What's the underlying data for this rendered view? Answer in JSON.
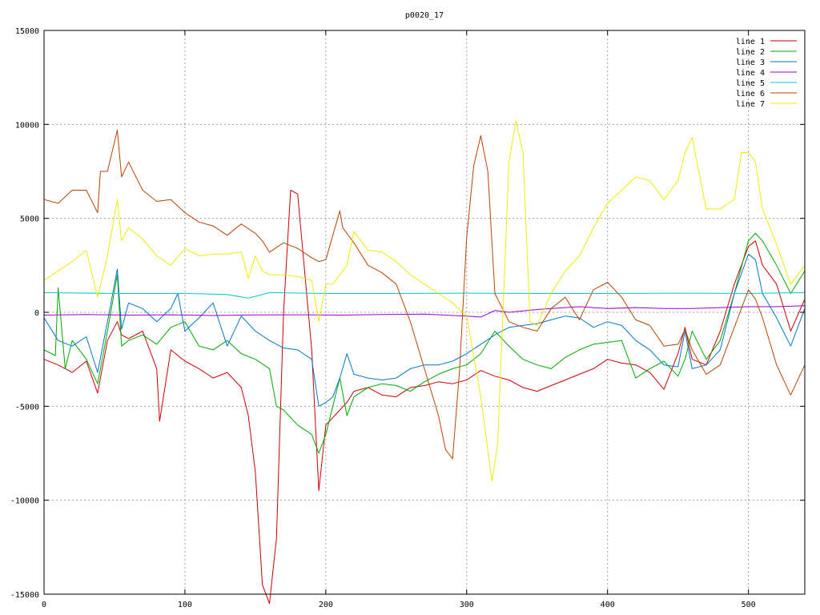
{
  "chart_data": {
    "type": "line",
    "title": "p0020_17",
    "xlabel": "",
    "ylabel": "",
    "xlim": [
      0,
      540
    ],
    "ylim": [
      -15000,
      15000
    ],
    "x_ticks": [
      0,
      100,
      200,
      300,
      400,
      500
    ],
    "y_ticks": [
      -15000,
      -10000,
      -5000,
      0,
      5000,
      10000,
      15000
    ],
    "grid": true,
    "legend_position": "top-right",
    "series": [
      {
        "name": "line 1",
        "color": "#cc0000",
        "x": [
          0,
          10,
          20,
          30,
          38,
          45,
          52,
          55,
          60,
          70,
          80,
          82,
          90,
          100,
          110,
          120,
          130,
          140,
          145,
          150,
          155,
          160,
          165,
          170,
          175,
          180,
          190,
          195,
          200,
          210,
          215,
          220,
          230,
          240,
          250,
          260,
          270,
          280,
          290,
          300,
          310,
          320,
          330,
          340,
          350,
          360,
          370,
          380,
          390,
          400,
          410,
          420,
          430,
          440,
          450,
          455,
          460,
          470,
          480,
          490,
          500,
          505,
          510,
          520,
          530,
          540
        ],
        "y": [
          -2500,
          -2800,
          -3200,
          -2600,
          -4300,
          -1500,
          -500,
          -1200,
          -1400,
          -1000,
          -3000,
          -5800,
          -2000,
          -2600,
          -3000,
          -3500,
          -3200,
          -4000,
          -5500,
          -8500,
          -14500,
          -15500,
          -12000,
          0,
          6500,
          6300,
          -2000,
          -9500,
          -6000,
          -5200,
          -4800,
          -4200,
          -4000,
          -4400,
          -4500,
          -4000,
          -3900,
          -3700,
          -3800,
          -3600,
          -3100,
          -3400,
          -3600,
          -4000,
          -4200,
          -3900,
          -3600,
          -3300,
          -3000,
          -2500,
          -2700,
          -2800,
          -3200,
          -4100,
          -2200,
          -800,
          -2500,
          -2800,
          -1000,
          1500,
          3500,
          3800,
          2500,
          1500,
          -1000,
          700
        ]
      },
      {
        "name": "line 2",
        "color": "#00aa00",
        "x": [
          0,
          8,
          10,
          15,
          20,
          30,
          38,
          45,
          52,
          55,
          60,
          70,
          80,
          90,
          100,
          110,
          120,
          130,
          140,
          150,
          160,
          165,
          170,
          180,
          190,
          195,
          200,
          205,
          210,
          215,
          220,
          230,
          240,
          250,
          260,
          270,
          280,
          290,
          300,
          310,
          320,
          330,
          340,
          350,
          360,
          370,
          380,
          390,
          400,
          410,
          420,
          430,
          440,
          450,
          455,
          460,
          470,
          480,
          490,
          500,
          505,
          510,
          520,
          530,
          540
        ],
        "y": [
          -2000,
          -2300,
          1300,
          -3000,
          -1500,
          -2500,
          -3800,
          -1000,
          2000,
          -1800,
          -1500,
          -1200,
          -1700,
          -800,
          -500,
          -1800,
          -2000,
          -1500,
          -2200,
          -2500,
          -3000,
          -5000,
          -5200,
          -6000,
          -6500,
          -7500,
          -6500,
          -5000,
          -3500,
          -5500,
          -4500,
          -4000,
          -3800,
          -3900,
          -4200,
          -3700,
          -3300,
          -3000,
          -2800,
          -2200,
          -1000,
          -1800,
          -2500,
          -2800,
          -3000,
          -2400,
          -2000,
          -1700,
          -1600,
          -1500,
          -3500,
          -3000,
          -2600,
          -3400,
          -2500,
          -1000,
          -2500,
          -1500,
          1000,
          3800,
          4200,
          3800,
          2500,
          1000,
          2200
        ]
      },
      {
        "name": "line 3",
        "color": "#0077cc",
        "x": [
          0,
          10,
          20,
          30,
          38,
          45,
          52,
          55,
          60,
          70,
          80,
          90,
          95,
          100,
          110,
          120,
          130,
          140,
          150,
          160,
          170,
          180,
          190,
          195,
          200,
          205,
          210,
          215,
          220,
          230,
          240,
          250,
          260,
          270,
          280,
          290,
          300,
          310,
          320,
          330,
          340,
          350,
          360,
          370,
          380,
          390,
          400,
          410,
          420,
          430,
          440,
          450,
          455,
          460,
          470,
          480,
          490,
          500,
          505,
          510,
          520,
          530,
          540
        ],
        "y": [
          -300,
          -1500,
          -1800,
          -1300,
          -3200,
          -500,
          2300,
          -900,
          500,
          200,
          -500,
          200,
          1000,
          -1000,
          -300,
          500,
          -1800,
          -200,
          -1000,
          -1500,
          -1900,
          -2000,
          -2500,
          -5000,
          -4800,
          -4500,
          -3500,
          -2200,
          -3300,
          -3500,
          -3600,
          -3500,
          -3000,
          -2800,
          -2800,
          -2600,
          -2200,
          -1700,
          -1200,
          -800,
          -700,
          -600,
          -400,
          -200,
          -300,
          -800,
          -500,
          -700,
          -1500,
          -2000,
          -2800,
          -2900,
          -1000,
          -3000,
          -2800,
          -2000,
          1000,
          3100,
          2800,
          1000,
          -300,
          -1800,
          200
        ]
      },
      {
        "name": "line 4",
        "color": "#9900cc",
        "x": [
          0,
          30,
          60,
          90,
          120,
          150,
          180,
          210,
          240,
          270,
          300,
          310,
          320,
          330,
          350,
          370,
          380,
          400,
          420,
          440,
          460,
          480,
          500,
          520,
          540
        ],
        "y": [
          -150,
          -120,
          -150,
          -130,
          -170,
          -140,
          -130,
          -150,
          -120,
          -100,
          -200,
          -250,
          100,
          0,
          150,
          250,
          300,
          200,
          250,
          200,
          200,
          250,
          300,
          300,
          350
        ]
      },
      {
        "name": "line 5",
        "color": "#00cccc",
        "x": [
          0,
          50,
          100,
          130,
          145,
          160,
          200,
          250,
          300,
          350,
          400,
          450,
          500,
          540
        ],
        "y": [
          1050,
          1000,
          1000,
          950,
          750,
          1050,
          1000,
          1000,
          1020,
          1000,
          1000,
          1020,
          1000,
          1050
        ]
      },
      {
        "name": "line 6",
        "color": "#bb4400",
        "x": [
          0,
          10,
          20,
          30,
          38,
          40,
          45,
          52,
          55,
          60,
          70,
          80,
          90,
          100,
          110,
          120,
          130,
          140,
          150,
          155,
          160,
          170,
          180,
          190,
          195,
          200,
          210,
          212,
          220,
          230,
          240,
          250,
          260,
          270,
          280,
          285,
          290,
          295,
          300,
          305,
          310,
          315,
          320,
          330,
          340,
          350,
          360,
          370,
          380,
          390,
          400,
          410,
          420,
          430,
          440,
          450,
          455,
          460,
          470,
          480,
          490,
          500,
          505,
          510,
          520,
          530,
          540
        ],
        "y": [
          6000,
          5800,
          6500,
          6500,
          5300,
          7500,
          7500,
          9700,
          7200,
          8000,
          6500,
          5900,
          6000,
          5300,
          4800,
          4600,
          4100,
          4700,
          4200,
          3800,
          3200,
          3700,
          3400,
          2900,
          2700,
          2800,
          5400,
          4500,
          3700,
          2500,
          2100,
          1500,
          -500,
          -3000,
          -5500,
          -7300,
          -7800,
          -3000,
          4000,
          7800,
          9400,
          7500,
          1000,
          -500,
          -800,
          -1000,
          200,
          800,
          -400,
          1200,
          1600,
          800,
          -400,
          -700,
          -1800,
          -1700,
          -900,
          -2000,
          -3300,
          -2800,
          -800,
          1200,
          700,
          -300,
          -2800,
          -4400,
          -2800
        ]
      },
      {
        "name": "line 7",
        "color": "#eeee00",
        "x": [
          0,
          10,
          20,
          30,
          38,
          45,
          52,
          55,
          60,
          70,
          80,
          90,
          100,
          110,
          120,
          130,
          140,
          145,
          150,
          155,
          160,
          170,
          180,
          190,
          195,
          200,
          205,
          210,
          215,
          220,
          230,
          240,
          250,
          260,
          270,
          280,
          290,
          300,
          310,
          318,
          322,
          330,
          335,
          340,
          345,
          350,
          360,
          370,
          380,
          390,
          400,
          410,
          420,
          430,
          440,
          450,
          455,
          460,
          470,
          480,
          490,
          495,
          500,
          505,
          510,
          520,
          530,
          540
        ],
        "y": [
          1700,
          2200,
          2700,
          3300,
          800,
          3000,
          6000,
          3800,
          4500,
          3900,
          3000,
          2500,
          3400,
          3000,
          3100,
          3100,
          3200,
          1800,
          3000,
          2200,
          2000,
          2000,
          1900,
          1700,
          -500,
          1500,
          1500,
          2000,
          2500,
          4300,
          3300,
          3200,
          2700,
          2000,
          1500,
          1000,
          500,
          -200,
          -4500,
          -9000,
          -7000,
          8000,
          10200,
          8500,
          -500,
          -700,
          1000,
          2200,
          3000,
          4500,
          5800,
          6500,
          7200,
          7000,
          6000,
          7000,
          8500,
          9300,
          5500,
          5500,
          6000,
          8500,
          8500,
          8000,
          5500,
          3600,
          1500,
          2500
        ]
      }
    ]
  }
}
